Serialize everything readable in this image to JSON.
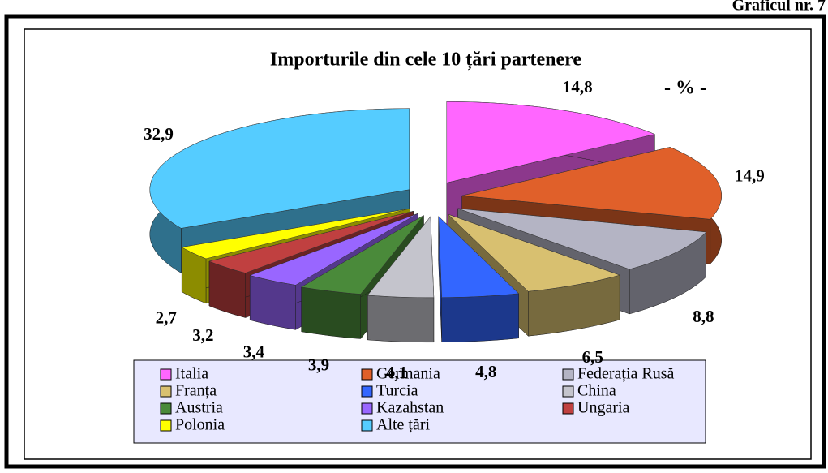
{
  "corner_label": "Graficul nr. 7",
  "chart_data": {
    "type": "pie",
    "title": "Importurile din cele 10 țări partenere",
    "subtitle": "- % -",
    "categories": [
      "Italia",
      "Germania",
      "Federația Rusă",
      "Franța",
      "Turcia",
      "China",
      "Austria",
      "Kazahstan",
      "Ungaria",
      "Polonia",
      "Alte țări"
    ],
    "values": [
      14.8,
      14.9,
      8.8,
      6.5,
      4.8,
      4.1,
      3.9,
      3.4,
      3.2,
      2.7,
      32.9
    ],
    "value_labels": [
      "14,8",
      "14,9",
      "8,8",
      "6,5",
      "4,8",
      "4,1",
      "3,9",
      "3,4",
      "3,2",
      "2,7",
      "32,9"
    ],
    "colors": [
      "#ff66ff",
      "#e0602a",
      "#b4b4c4",
      "#d8c070",
      "#3366ff",
      "#c4c4cc",
      "#4a8a3a",
      "#9966ff",
      "#c04040",
      "#ffff00",
      "#55ccff"
    ]
  }
}
